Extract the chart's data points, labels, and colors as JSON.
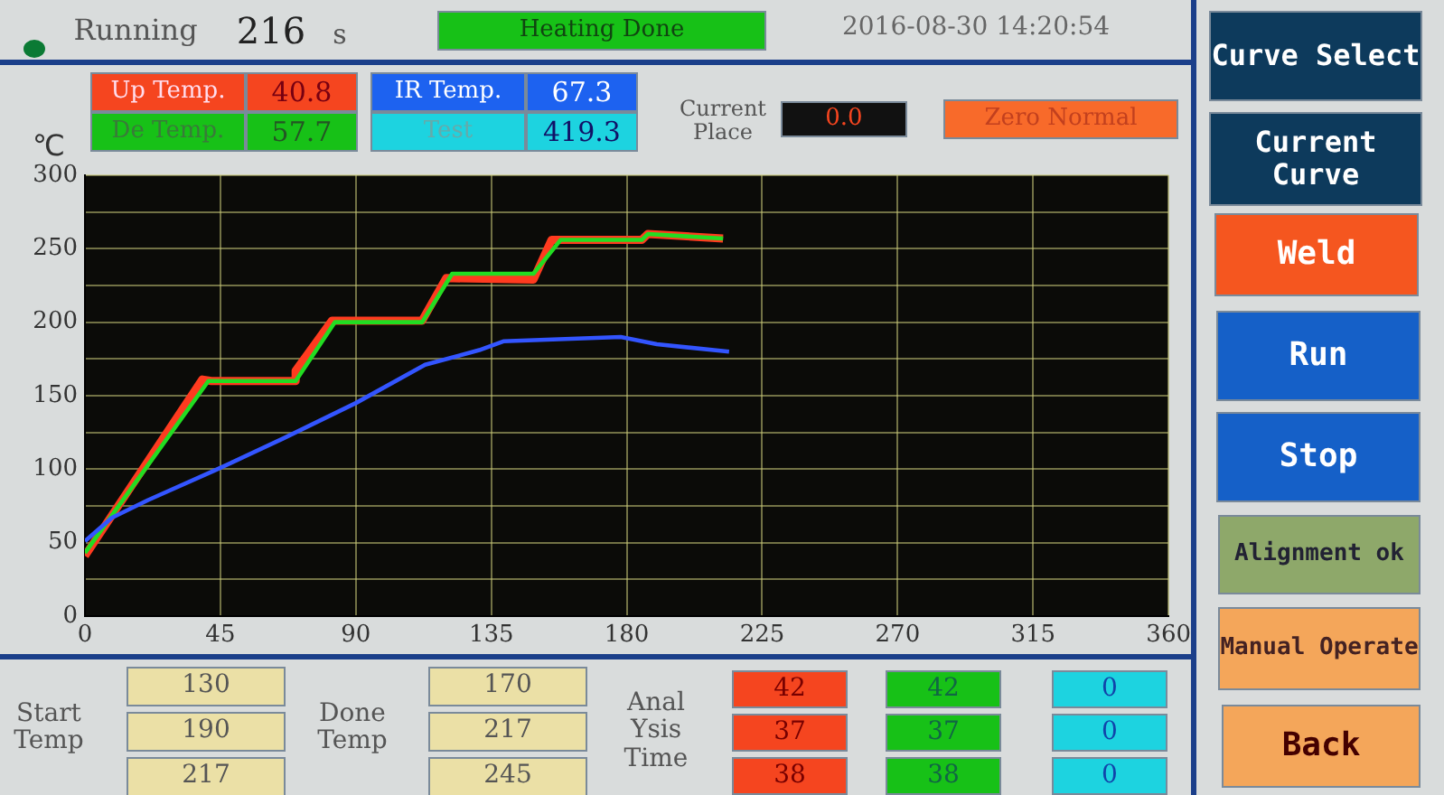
{
  "chart_data": [
    {
      "type": "line",
      "ylabel": "℃",
      "xlim": [
        0,
        360
      ],
      "xticks": [
        0,
        45,
        90,
        135,
        180,
        225,
        270,
        315,
        360
      ],
      "ylim": [
        0,
        300
      ],
      "yticks": [
        0,
        {
          "value": 25,
          "label": null
        },
        50,
        {
          "value": 75,
          "label": null
        },
        100,
        {
          "value": 125,
          "label": null
        },
        150,
        {
          "value": 175,
          "label": null
        },
        200,
        {
          "value": 225,
          "label": null
        },
        250,
        {
          "value": 275,
          "label": null
        },
        300
      ],
      "grid": true,
      "marker": "none",
      "line_style": "solid",
      "series": [
        {
          "color": "#ff3b1f",
          "x": [
            0,
            39,
            42,
            70,
            70,
            82,
            112,
            120,
            149,
            155,
            185,
            187,
            212
          ],
          "values": [
            41,
            161,
            160,
            160,
            167,
            201,
            201,
            230,
            229,
            256,
            256,
            260,
            257
          ]
        },
        {
          "color": "#22dd22",
          "x": [
            0,
            41,
            70,
            83,
            112,
            122,
            149,
            158,
            185,
            187,
            212
          ],
          "values": [
            43,
            160,
            160,
            200,
            200,
            233,
            233,
            256,
            256,
            260,
            257
          ]
        },
        {
          "color": "#3355ff",
          "x": [
            0,
            9,
            21,
            43,
            66,
            90,
            113,
            131,
            139,
            178,
            190,
            214
          ],
          "values": [
            51,
            67,
            79,
            99,
            121,
            145,
            171,
            181,
            187,
            190,
            185,
            180
          ]
        }
      ]
    },
    {
      "type": "other",
      "annotations": [
        "Running",
        "216",
        "s",
        "Heating Done",
        "2016-08-30 14:20:54",
        "Up Temp.",
        "40.8",
        "De Temp.",
        "57.7",
        "IR Temp.",
        "67.3",
        "Test",
        "419.3",
        "Current Place",
        "0.0",
        "Zero Normal",
        "Start Temp",
        "130",
        "190",
        "217",
        "Done Temp",
        "170",
        "217",
        "245",
        "Anal Ysis Time",
        "42",
        "37",
        "38",
        "42",
        "37",
        "38",
        "0",
        "0",
        "0",
        "Curve Select",
        "Current Curve",
        "Weld",
        "Run",
        "Stop",
        "Alignment ok",
        "Manual Operate",
        "Back"
      ]
    }
  ]
}
